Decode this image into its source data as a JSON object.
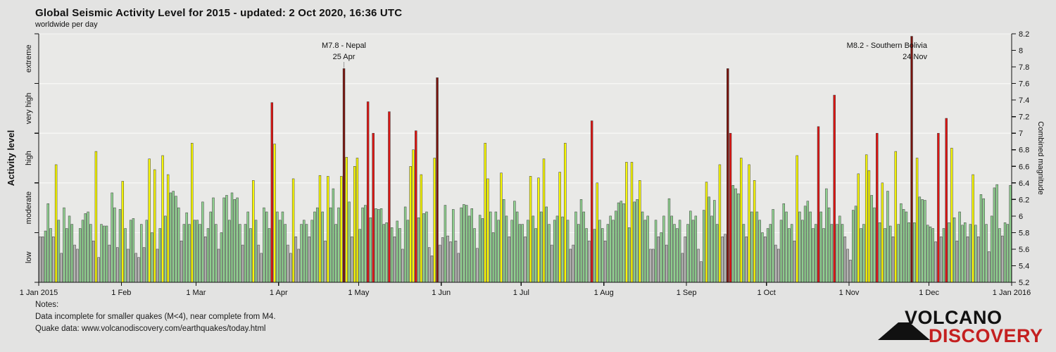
{
  "title": "Global Seismic Activity Level for 2015 - updated:  2 Oct 2020, 16:36 UTC",
  "subtitle": "worldwide per day",
  "notes": {
    "heading": "Notes:",
    "line1": "Data incomplete for smaller quakes (M<4), near complete from M4.",
    "line2": "Quake data: www.volcanodiscovery.com/earthquakes/today.html"
  },
  "logo": {
    "word1": "VOLCANO",
    "word2": "DISCOVERY",
    "icon": "volcano-icon",
    "word1_color": "#111111",
    "word2_color": "#c42020"
  },
  "chart_data": {
    "type": "bar",
    "title": "Global Seismic Activity Level for 2015",
    "ylabel_left": "Activity level",
    "ylabel_right": "Combined magnitude",
    "y_min": 5.2,
    "y_max": 8.2,
    "y_tick_step": 0.2,
    "right_tick_labels": [
      "5.2",
      "5.4",
      "5.6",
      "5.8",
      "6",
      "6.2",
      "6.4",
      "6.6",
      "6.8",
      "7",
      "7.2",
      "7.4",
      "7.6",
      "7.8",
      "8",
      "8.2"
    ],
    "grid_on": true,
    "activity_levels": [
      {
        "label": "low",
        "from": 5.2,
        "to": 5.8,
        "color": "#b5b5b3"
      },
      {
        "label": "moderate",
        "from": 5.8,
        "to": 6.4,
        "color": "#8fd08f"
      },
      {
        "label": "high",
        "from": 6.4,
        "to": 7.0,
        "color": "#f8f800"
      },
      {
        "label": "very high",
        "from": 7.0,
        "to": 7.6,
        "color": "#de1512"
      },
      {
        "label": "extreme",
        "from": 7.6,
        "to": 8.2,
        "color": "#7a130d"
      }
    ],
    "bar_outline_color": "#3a3a3a",
    "plot_bg_color": "#e9e9e7",
    "gridline_color": "#f6f6f4",
    "axis_color": "#111111",
    "start_date": "1 Jan 2015",
    "days_in_year": 365,
    "x_ticks": [
      {
        "day": 0,
        "label": "1 Jan 2015"
      },
      {
        "day": 31,
        "label": "1 Feb"
      },
      {
        "day": 59,
        "label": "1 Mar"
      },
      {
        "day": 90,
        "label": "1 Apr"
      },
      {
        "day": 120,
        "label": "1 May"
      },
      {
        "day": 151,
        "label": "1 Jun"
      },
      {
        "day": 181,
        "label": "1 Jul"
      },
      {
        "day": 212,
        "label": "1 Aug"
      },
      {
        "day": 243,
        "label": "1 Sep"
      },
      {
        "day": 273,
        "label": "1 Oct"
      },
      {
        "day": 304,
        "label": "1 Nov"
      },
      {
        "day": 334,
        "label": "1 Dec"
      },
      {
        "day": 365,
        "label": "1 Jan 2016"
      }
    ],
    "values": [
      5.75,
      5.75,
      5.82,
      6.15,
      5.85,
      5.75,
      6.62,
      5.95,
      5.55,
      6.1,
      5.85,
      6.0,
      5.9,
      5.65,
      5.6,
      5.85,
      5.95,
      6.03,
      6.05,
      5.9,
      5.7,
      6.78,
      5.5,
      5.9,
      5.88,
      5.88,
      5.65,
      6.28,
      6.1,
      5.62,
      6.08,
      6.42,
      5.85,
      5.6,
      5.95,
      5.97,
      5.55,
      5.5,
      5.9,
      5.62,
      5.95,
      6.69,
      5.8,
      6.56,
      5.6,
      5.85,
      6.73,
      6.0,
      6.5,
      6.28,
      6.3,
      6.24,
      6.1,
      5.7,
      5.9,
      6.04,
      5.9,
      6.88,
      5.95,
      5.95,
      5.9,
      6.17,
      5.75,
      5.85,
      6.05,
      6.22,
      5.9,
      5.6,
      5.8,
      6.22,
      6.25,
      5.95,
      6.28,
      6.2,
      6.22,
      5.9,
      5.65,
      5.9,
      6.05,
      5.85,
      6.43,
      5.95,
      5.65,
      5.55,
      6.1,
      6.05,
      5.85,
      7.37,
      6.87,
      6.05,
      5.95,
      6.05,
      5.9,
      5.65,
      5.55,
      6.45,
      5.75,
      5.6,
      5.9,
      5.95,
      5.9,
      5.75,
      5.95,
      6.05,
      6.1,
      6.49,
      6.05,
      5.7,
      6.48,
      6.1,
      6.33,
      5.9,
      6.1,
      6.48,
      7.78,
      6.71,
      6.17,
      5.75,
      6.6,
      6.7,
      5.84,
      6.1,
      6.13,
      7.38,
      5.98,
      7.0,
      6.09,
      6.08,
      6.09,
      5.9,
      5.92,
      7.26,
      5.86,
      5.75,
      5.94,
      5.85,
      5.6,
      6.11,
      5.95,
      6.6,
      6.8,
      7.03,
      5.98,
      6.5,
      6.03,
      6.05,
      5.62,
      5.52,
      6.7,
      7.67,
      5.65,
      5.74,
      6.13,
      5.76,
      5.69,
      6.08,
      5.7,
      5.55,
      6.1,
      6.14,
      6.13,
      6.0,
      6.09,
      5.85,
      5.61,
      6.01,
      5.97,
      6.88,
      6.45,
      6.05,
      5.8,
      6.05,
      5.95,
      6.52,
      6.2,
      6.0,
      5.75,
      5.95,
      6.18,
      6.05,
      5.9,
      5.9,
      5.75,
      5.95,
      6.48,
      6.0,
      5.85,
      6.46,
      6.05,
      6.69,
      6.11,
      5.9,
      5.65,
      5.95,
      6.0,
      6.53,
      5.99,
      6.88,
      5.95,
      5.6,
      5.65,
      6.05,
      5.9,
      6.2,
      6.05,
      5.85,
      5.7,
      7.15,
      5.84,
      6.4,
      5.95,
      5.85,
      5.7,
      5.9,
      6.0,
      5.95,
      6.06,
      6.16,
      6.18,
      6.15,
      6.65,
      5.86,
      6.65,
      6.17,
      6.2,
      6.43,
      6.05,
      5.95,
      6.0,
      5.6,
      5.6,
      5.95,
      5.75,
      5.8,
      6.0,
      5.65,
      6.21,
      6.0,
      5.9,
      5.85,
      5.95,
      5.55,
      5.75,
      5.9,
      6.06,
      5.95,
      6.0,
      5.6,
      5.45,
      6.07,
      6.41,
      6.23,
      6.0,
      6.19,
      5.9,
      6.62,
      5.75,
      5.78,
      7.78,
      7.0,
      6.37,
      6.33,
      6.27,
      6.7,
      5.9,
      5.75,
      6.62,
      6.05,
      6.43,
      6.05,
      5.95,
      5.8,
      5.75,
      5.85,
      5.9,
      6.08,
      5.65,
      5.6,
      5.95,
      6.15,
      6.05,
      5.85,
      5.9,
      5.7,
      6.73,
      6.05,
      5.95,
      6.12,
      6.18,
      6.05,
      5.85,
      5.9,
      7.08,
      6.05,
      5.85,
      6.33,
      6.1,
      5.9,
      7.46,
      5.9,
      6.0,
      5.9,
      5.75,
      5.6,
      5.47,
      6.07,
      6.12,
      6.51,
      5.85,
      5.9,
      6.74,
      6.55,
      6.25,
      6.1,
      7.0,
      5.92,
      6.4,
      5.85,
      6.3,
      5.88,
      5.75,
      6.78,
      5.9,
      6.15,
      6.08,
      6.05,
      5.92,
      8.17,
      5.92,
      6.7,
      6.23,
      6.2,
      6.19,
      5.89,
      5.87,
      5.85,
      5.69,
      7.0,
      5.75,
      5.85,
      7.18,
      5.92,
      6.82,
      5.98,
      5.7,
      6.05,
      5.89,
      5.92,
      5.75,
      5.9,
      6.5,
      5.89,
      5.75,
      6.26,
      6.21,
      5.9,
      5.57,
      6.0,
      6.34,
      6.38,
      5.85,
      5.76,
      5.92,
      5.9,
      6.37
    ],
    "annotations": [
      {
        "line1": "M7.8 - Nepal",
        "line2": "25 Apr",
        "day": 114,
        "anchor": "middle",
        "dx": 0,
        "pointer": true
      },
      {
        "line1": "M8.2 - Southern Bolivia",
        "line2": "24 Nov",
        "day": 327,
        "anchor": "end",
        "dx": 22,
        "pointer": false
      }
    ]
  }
}
